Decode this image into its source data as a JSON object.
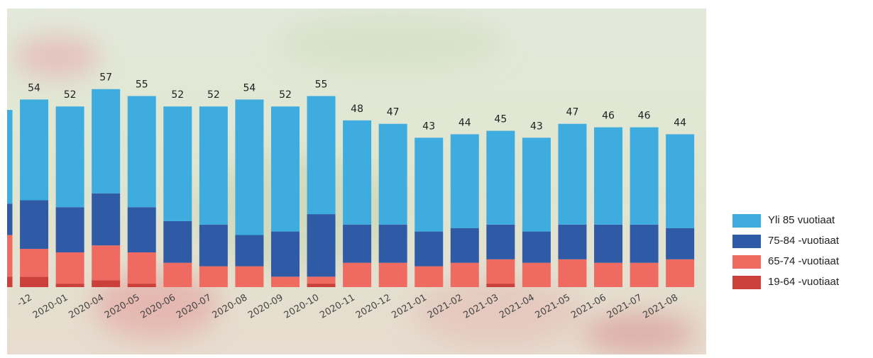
{
  "chart_data": {
    "type": "stacked_bar",
    "categories": [
      null,
      "-12",
      "2020-01",
      "2020-04",
      "2020-05",
      "2020-06",
      "2020-07",
      "2020-08",
      "2020-09",
      "2020-10",
      "2020-11",
      "2020-12",
      "2021-01",
      "2021-02",
      "2021-03",
      "2021-04",
      "2021-05",
      "2021-06",
      "2021-07",
      "2021-08"
    ],
    "series": [
      {
        "name": "Yli 85 vuotiaat",
        "color": "#3eacdf",
        "values": [
          27,
          29,
          29,
          30,
          32,
          33,
          34,
          39,
          36,
          34,
          30,
          29,
          27,
          27,
          27,
          27,
          29,
          28,
          28,
          27
        ]
      },
      {
        "name": "75-84 -vuotiaat",
        "color": "#2f5ba6",
        "values": [
          9,
          14,
          13,
          15,
          13,
          12,
          12,
          9,
          13,
          18,
          11,
          11,
          10,
          10,
          10,
          9,
          10,
          11,
          11,
          9
        ]
      },
      {
        "name": "65-74 -vuotiaat",
        "color": "#ef6b61",
        "values": [
          12,
          8,
          9,
          10,
          9,
          7,
          6,
          6,
          3,
          2,
          7,
          7,
          6,
          7,
          7,
          7,
          8,
          7,
          7,
          8
        ]
      },
      {
        "name": "19-64 -vuotiaat",
        "color": "#cc403b",
        "values": [
          3,
          3,
          1,
          2,
          1,
          0,
          0,
          0,
          0,
          1,
          0,
          0,
          0,
          0,
          1,
          0,
          0,
          0,
          0,
          0
        ]
      }
    ],
    "totals": [
      null,
      54,
      52,
      57,
      55,
      52,
      52,
      54,
      52,
      55,
      48,
      47,
      43,
      44,
      45,
      43,
      47,
      46,
      46,
      44
    ],
    "legend": "right"
  }
}
